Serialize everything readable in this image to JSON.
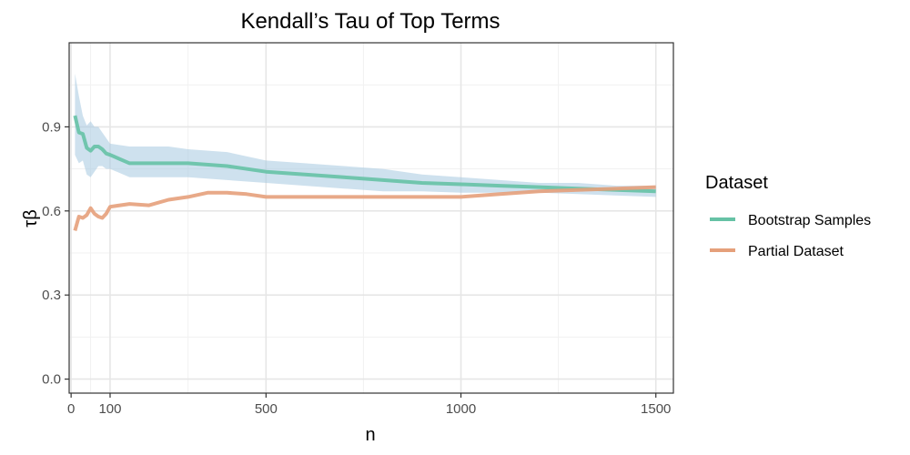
{
  "chart_data": {
    "type": "line",
    "title": "Kendall’s Tau of Top Terms",
    "xlabel": "n",
    "ylabel": "τβ",
    "xlim": [
      -5,
      1545
    ],
    "ylim": [
      -0.05,
      1.2
    ],
    "x_ticks": [
      0,
      100,
      500,
      1000,
      1500
    ],
    "x_tick_labels": [
      "0",
      "100",
      "500",
      "1000",
      "1500"
    ],
    "y_ticks": [
      0,
      0.3,
      0.6,
      0.9
    ],
    "y_tick_labels": [
      "0.0",
      "0.3",
      "0.6",
      "0.9"
    ],
    "grid": true,
    "legend": {
      "title": "Dataset",
      "position": "right"
    },
    "series": [
      {
        "name": "Bootstrap Samples",
        "color": "#66c2a5",
        "x": [
          10,
          20,
          30,
          40,
          50,
          60,
          70,
          80,
          90,
          100,
          150,
          200,
          250,
          300,
          400,
          500,
          600,
          700,
          800,
          900,
          1000,
          1100,
          1200,
          1300,
          1400,
          1500
        ],
        "values": [
          0.94,
          0.88,
          0.875,
          0.825,
          0.815,
          0.83,
          0.83,
          0.82,
          0.805,
          0.8,
          0.77,
          0.77,
          0.77,
          0.77,
          0.76,
          0.74,
          0.73,
          0.72,
          0.71,
          0.7,
          0.695,
          0.69,
          0.685,
          0.68,
          0.675,
          0.67
        ],
        "band_upper": [
          1.09,
          1.01,
          0.94,
          0.905,
          0.92,
          0.9,
          0.9,
          0.88,
          0.86,
          0.84,
          0.83,
          0.83,
          0.83,
          0.82,
          0.81,
          0.78,
          0.77,
          0.76,
          0.75,
          0.73,
          0.72,
          0.71,
          0.7,
          0.7,
          0.69,
          0.69
        ],
        "band_lower": [
          0.8,
          0.77,
          0.78,
          0.73,
          0.72,
          0.74,
          0.76,
          0.76,
          0.75,
          0.75,
          0.72,
          0.72,
          0.72,
          0.72,
          0.71,
          0.7,
          0.69,
          0.68,
          0.67,
          0.67,
          0.665,
          0.665,
          0.665,
          0.66,
          0.655,
          0.65
        ]
      },
      {
        "name": "Partial Dataset",
        "color": "#e5a07b",
        "x": [
          10,
          20,
          30,
          40,
          50,
          60,
          70,
          80,
          90,
          100,
          150,
          200,
          250,
          300,
          350,
          400,
          450,
          500,
          600,
          700,
          800,
          900,
          1000,
          1100,
          1200,
          1300,
          1400,
          1500
        ],
        "values": [
          0.53,
          0.58,
          0.575,
          0.585,
          0.61,
          0.59,
          0.58,
          0.575,
          0.59,
          0.615,
          0.625,
          0.62,
          0.64,
          0.65,
          0.665,
          0.665,
          0.66,
          0.65,
          0.65,
          0.65,
          0.65,
          0.65,
          0.65,
          0.66,
          0.67,
          0.675,
          0.68,
          0.685
        ]
      }
    ]
  }
}
